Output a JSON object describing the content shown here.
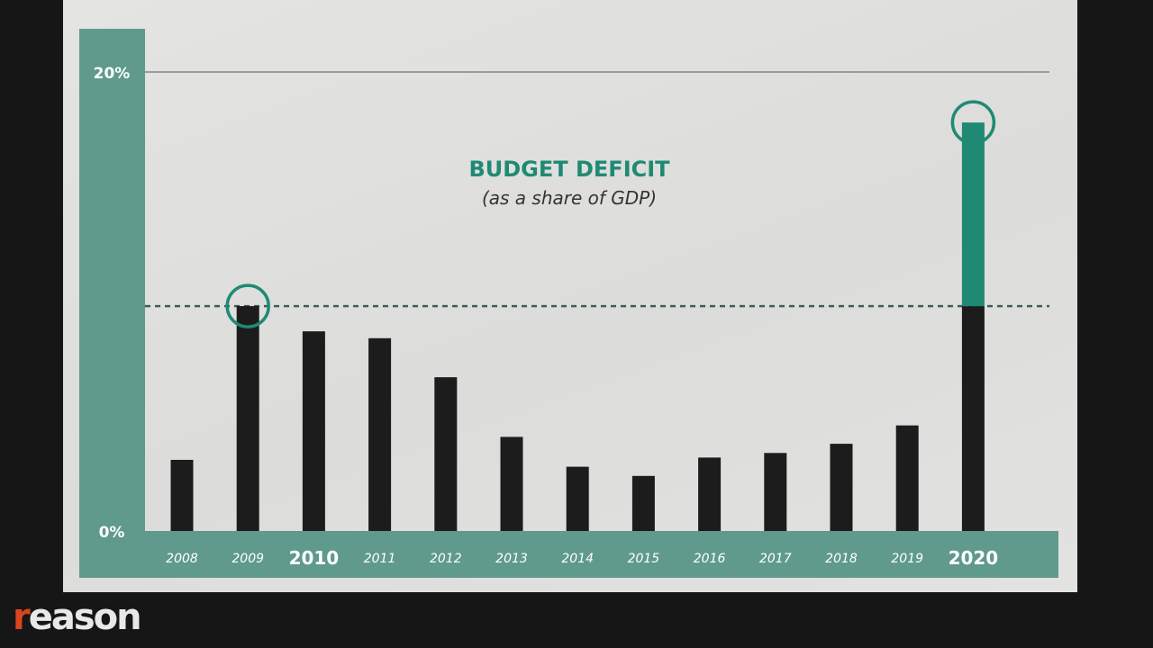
{
  "chart_data": {
    "type": "bar",
    "title": "BUDGET DEFICIT",
    "subtitle": "(as a share of GDP)",
    "categories": [
      "2008",
      "2009",
      "2010",
      "2011",
      "2012",
      "2013",
      "2014",
      "2015",
      "2016",
      "2017",
      "2018",
      "2019",
      "2020"
    ],
    "highlighted_categories": [
      "2010",
      "2020"
    ],
    "values": [
      3.1,
      9.8,
      8.7,
      8.4,
      6.7,
      4.1,
      2.8,
      2.4,
      3.2,
      3.4,
      3.8,
      4.6,
      17.8
    ],
    "reference_line": 9.8,
    "ylim": [
      0,
      20
    ],
    "yticks": [
      "0%",
      "20%"
    ],
    "circled_categories": [
      "2009",
      "2020"
    ],
    "grid": false
  },
  "colors": {
    "accent": "#1f8a74",
    "accent_band": "#5f9a8c",
    "bar": "#1c1c1c",
    "paper": "#e0e0de",
    "background": "#161616"
  },
  "brand": {
    "logo_first": "r",
    "logo_rest": "eason"
  }
}
